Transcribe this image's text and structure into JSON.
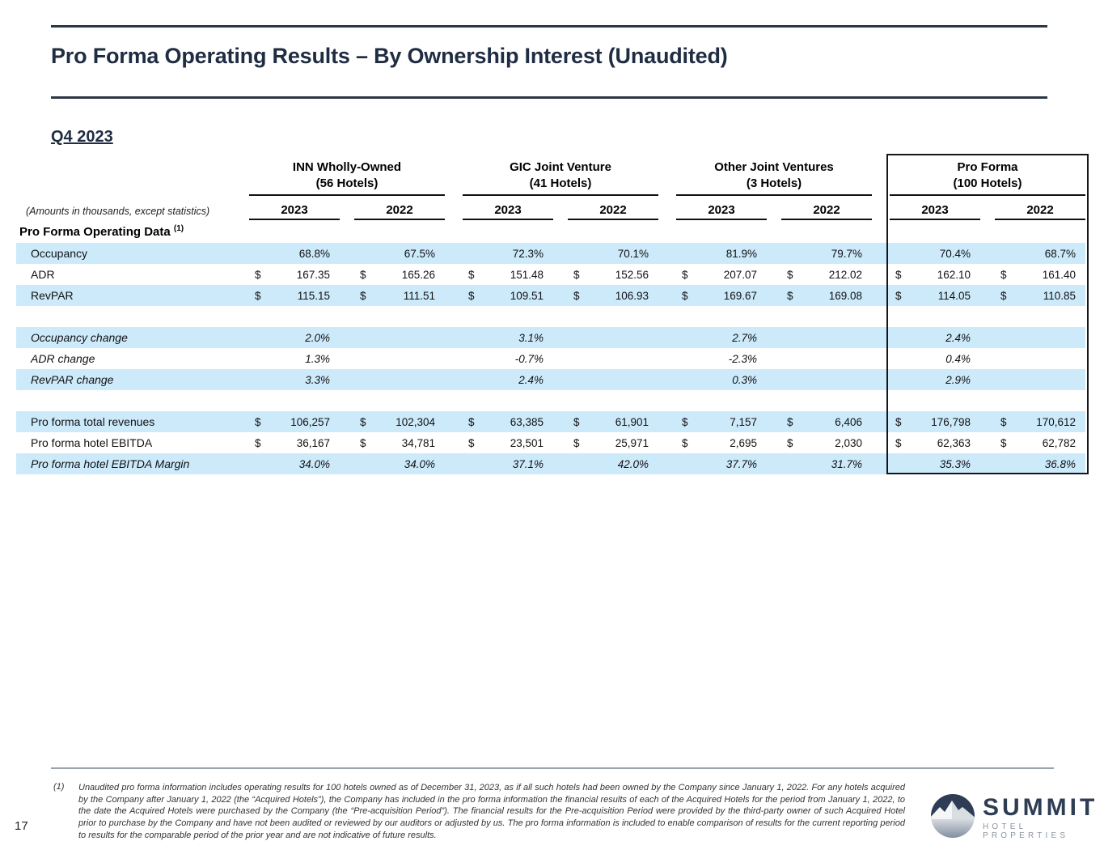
{
  "slide": {
    "title": "Pro Forma Operating Results – By Ownership Interest (Unaudited)",
    "subtitle": "Q4 2023",
    "page_number": "17"
  },
  "table": {
    "amounts_note": "(Amounts in thousands, except statistics)",
    "section_header": "Pro Forma Operating Data",
    "section_superscript": "(1)",
    "currency_symbol": "$",
    "groups": [
      {
        "name": "INN Wholly-Owned",
        "subname": "(56 Hotels)"
      },
      {
        "name": "GIC Joint Venture",
        "subname": "(41 Hotels)"
      },
      {
        "name": "Other Joint Ventures",
        "subname": "(3 Hotels)"
      },
      {
        "name": "Pro Forma",
        "subname": "(100 Hotels)"
      }
    ],
    "year_headers": [
      "2023",
      "2022",
      "2023",
      "2022",
      "2023",
      "2022",
      "2023",
      "2022"
    ],
    "rows": [
      {
        "label": "Occupancy",
        "band": "blue",
        "italic": false,
        "currency": false,
        "values": [
          "68.8%",
          "67.5%",
          "72.3%",
          "70.1%",
          "81.9%",
          "79.7%",
          "70.4%",
          "68.7%"
        ]
      },
      {
        "label": "ADR",
        "band": "white",
        "italic": false,
        "currency": true,
        "values": [
          "167.35",
          "165.26",
          "151.48",
          "152.56",
          "207.07",
          "212.02",
          "162.10",
          "161.40"
        ]
      },
      {
        "label": "RevPAR",
        "band": "blue",
        "italic": false,
        "currency": true,
        "values": [
          "115.15",
          "111.51",
          "109.51",
          "106.93",
          "169.67",
          "169.08",
          "114.05",
          "110.85"
        ]
      },
      {
        "spacer": true
      },
      {
        "label": "Occupancy change",
        "band": "blue",
        "italic": true,
        "currency": false,
        "values": [
          "2.0%",
          "",
          "3.1%",
          "",
          "2.7%",
          "",
          "2.4%",
          ""
        ]
      },
      {
        "label": "ADR change",
        "band": "white",
        "italic": true,
        "currency": false,
        "values": [
          "1.3%",
          "",
          "-0.7%",
          "",
          "-2.3%",
          "",
          "0.4%",
          ""
        ]
      },
      {
        "label": "RevPAR change",
        "band": "blue",
        "italic": true,
        "currency": false,
        "values": [
          "3.3%",
          "",
          "2.4%",
          "",
          "0.3%",
          "",
          "2.9%",
          ""
        ]
      },
      {
        "spacer": true
      },
      {
        "label": "Pro forma total revenues",
        "band": "blue",
        "italic": false,
        "currency": true,
        "values": [
          "106,257",
          "102,304",
          "63,385",
          "61,901",
          "7,157",
          "6,406",
          "176,798",
          "170,612"
        ]
      },
      {
        "label": "Pro forma hotel EBITDA",
        "band": "white",
        "italic": false,
        "currency": true,
        "values": [
          "36,167",
          "34,781",
          "23,501",
          "25,971",
          "2,695",
          "2,030",
          "62,363",
          "62,782"
        ]
      },
      {
        "label": "Pro forma hotel EBITDA Margin",
        "band": "blue",
        "italic": true,
        "currency": false,
        "values": [
          "34.0%",
          "34.0%",
          "37.1%",
          "42.0%",
          "37.7%",
          "31.7%",
          "35.3%",
          "36.8%"
        ]
      }
    ]
  },
  "footnote": {
    "marker": "(1)",
    "text": "Unaudited pro forma information includes operating results for 100 hotels owned as of December 31, 2023, as if all such hotels had been owned by the Company since January 1, 2022. For any hotels acquired by the Company after January 1, 2022 (the “Acquired Hotels”), the Company has included in the pro forma information the financial results of each of the Acquired Hotels for the period from January 1, 2022, to the date the Acquired Hotels were purchased by the Company (the “Pre-acquisition Period”). The financial results for the Pre-acquisition Period were provided by the third-party owner of such Acquired Hotel prior to purchase by the Company and have not been audited or reviewed by our auditors or adjusted by us. The pro forma information is included to enable comparison of results for the current reporting period to results for the comparable period of the prior year and are not indicative of future results."
  },
  "logo": {
    "name": "SUMMIT",
    "tagline": "HOTEL PROPERTIES"
  },
  "colors": {
    "accent_navy": "#1f2c42",
    "row_highlight_blue": "#cdeafb",
    "rule_dark": "#2c3744",
    "box_border": "#15161a"
  }
}
